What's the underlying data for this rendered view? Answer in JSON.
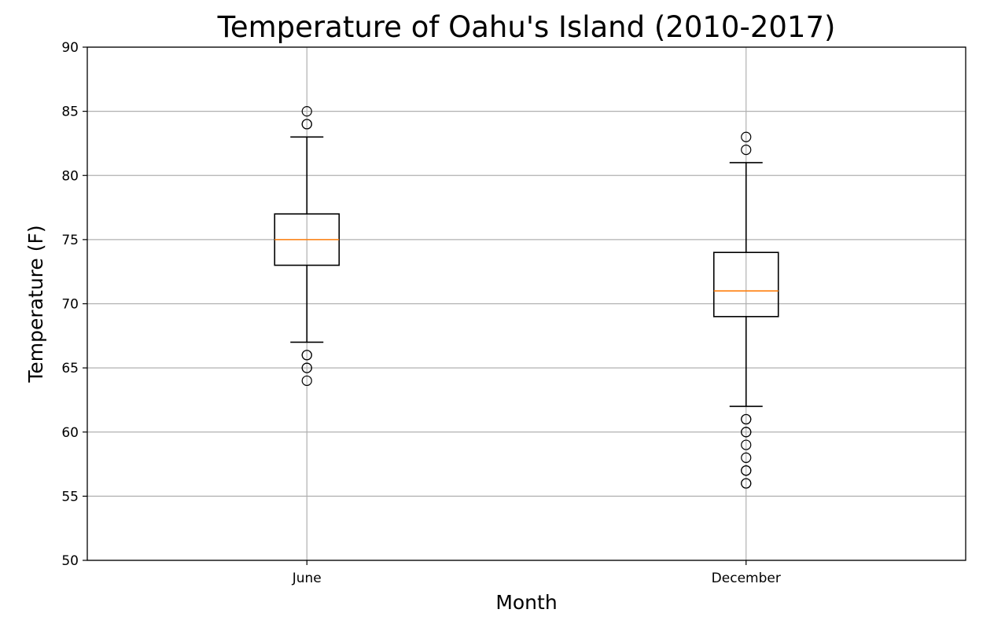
{
  "chart_data": {
    "type": "box",
    "title": "Temperature of Oahu's Island (2010-2017)",
    "xlabel": "Month",
    "ylabel": "Temperature (F)",
    "ylim": [
      50,
      90
    ],
    "yticks": [
      50,
      55,
      60,
      65,
      70,
      75,
      80,
      85,
      90
    ],
    "grid": true,
    "categories": [
      "June",
      "December"
    ],
    "boxes": [
      {
        "category": "June",
        "whisker_low": 67,
        "q1": 73,
        "median": 75,
        "q3": 77,
        "whisker_high": 83,
        "outliers": [
          64,
          65,
          65,
          66,
          66,
          84,
          84,
          85
        ]
      },
      {
        "category": "December",
        "whisker_low": 62,
        "q1": 69,
        "median": 71,
        "q3": 74,
        "whisker_high": 81,
        "outliers": [
          56,
          56,
          57,
          57,
          58,
          59,
          60,
          60,
          61,
          61,
          82,
          83
        ]
      }
    ],
    "colors": {
      "box": "#000000",
      "median": "#ff7f0e",
      "grid": "#b0b0b0",
      "outlier": "#000000"
    }
  }
}
